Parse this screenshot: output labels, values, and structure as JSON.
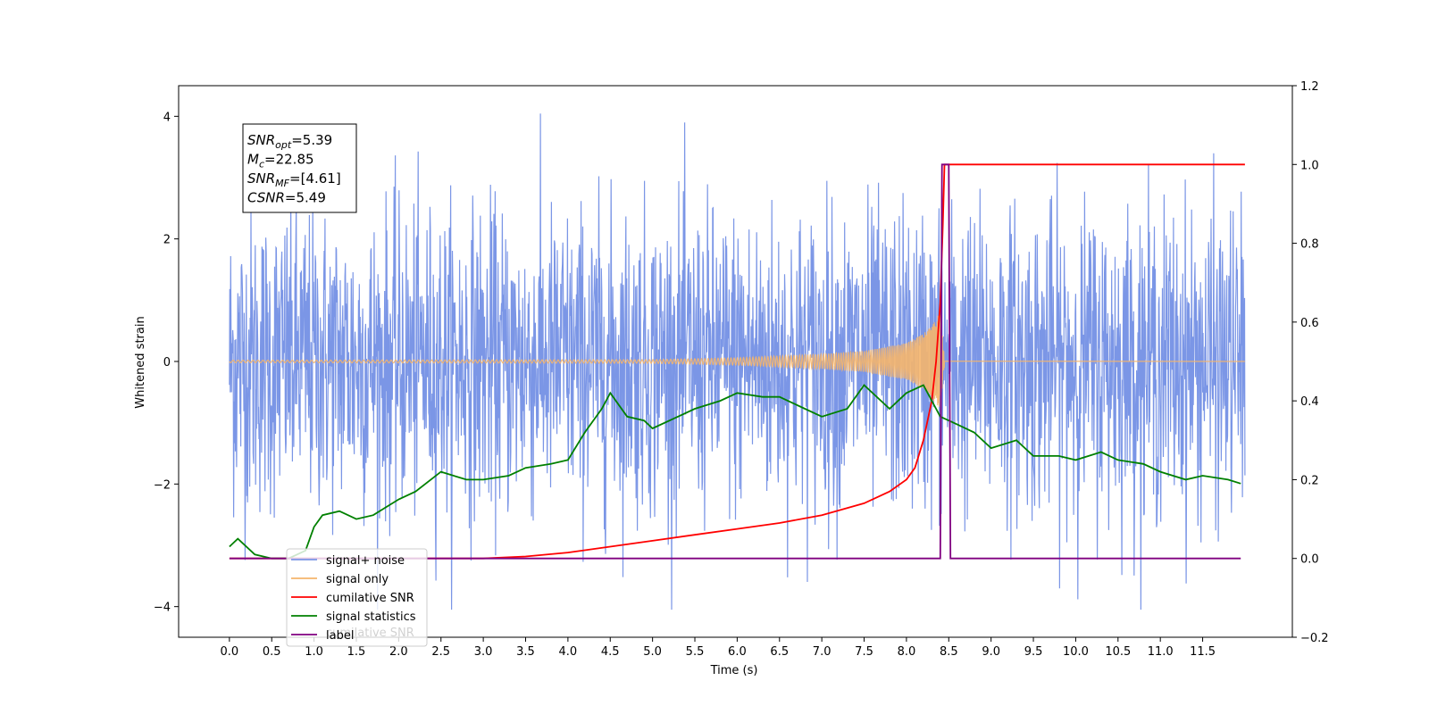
{
  "chart_data": {
    "type": "line",
    "title": "",
    "xlabel": "Time (s)",
    "ylabel": "Whitened strain",
    "y2label": "",
    "xlim": [
      -0.6,
      12.56
    ],
    "ylim": [
      -4.5,
      4.5
    ],
    "y2lim": [
      -0.2,
      1.2
    ],
    "grid": false,
    "legend_position": "lower-left",
    "x_ticks": [
      "0.0",
      "0.5",
      "1.0",
      "1.5",
      "2.0",
      "2.5",
      "3.0",
      "3.5",
      "4.0",
      "4.5",
      "5.0",
      "5.5",
      "6.0",
      "6.5",
      "7.0",
      "7.5",
      "8.0",
      "8.5",
      "9.0",
      "9.5",
      "10.0",
      "10.5",
      "11.0",
      "11.5"
    ],
    "y_ticks": [
      "4",
      "2",
      "0",
      "−2",
      "−4"
    ],
    "y_tick_values": [
      4,
      2,
      0,
      -2,
      -4
    ],
    "y2_ticks": [
      "1.2",
      "1.0",
      "0.8",
      "0.6",
      "0.4",
      "0.2",
      "0.0",
      "−0.2"
    ],
    "y2_tick_values": [
      1.2,
      1.0,
      0.8,
      0.6,
      0.4,
      0.2,
      0.0,
      -0.2
    ],
    "annotation": {
      "lines": [
        {
          "main": "SNR",
          "sub": "opt",
          "rest": "=5.39"
        },
        {
          "main": "M",
          "sub": "c",
          "rest": "=22.85"
        },
        {
          "main": "SNR",
          "sub": "MF",
          "rest": "=[4.61]"
        },
        {
          "main": "CSNR",
          "sub": "",
          "rest": "=5.49"
        }
      ]
    },
    "series": [
      {
        "name": "signal+ noise",
        "axis": "left",
        "color": "#7b96e6",
        "kind": "noise",
        "x_range": [
          0.0,
          12.0
        ],
        "description_values": {
          "typical_amplitude": 1.3,
          "max": 4.1,
          "min": -4.05
        }
      },
      {
        "name": "signal only",
        "axis": "left",
        "color": "#f5b56b",
        "kind": "chirp",
        "x_range": [
          0.0,
          8.45
        ],
        "envelope_x": [
          0.0,
          5.0,
          6.0,
          7.0,
          7.5,
          8.0,
          8.2,
          8.3,
          8.4,
          8.45
        ],
        "envelope_y": [
          0.02,
          0.03,
          0.06,
          0.12,
          0.17,
          0.3,
          0.45,
          0.6,
          0.8,
          0.05
        ]
      },
      {
        "name": "cumilative SNR",
        "axis": "right",
        "color": "#ff0000",
        "x": [
          0.0,
          2.0,
          3.0,
          3.5,
          4.0,
          4.5,
          5.0,
          5.5,
          6.0,
          6.5,
          7.0,
          7.5,
          7.8,
          8.0,
          8.1,
          8.2,
          8.3,
          8.35,
          8.4,
          8.43,
          8.45,
          12.0
        ],
        "values": [
          0.0,
          0.0,
          0.0,
          0.005,
          0.015,
          0.03,
          0.045,
          0.06,
          0.075,
          0.09,
          0.11,
          0.14,
          0.17,
          0.2,
          0.23,
          0.3,
          0.4,
          0.5,
          0.65,
          0.85,
          1.0,
          1.0
        ]
      },
      {
        "name": "signal statistics",
        "axis": "right",
        "color": "#008000",
        "x": [
          0.0,
          0.1,
          0.3,
          0.5,
          0.7,
          0.9,
          1.0,
          1.1,
          1.3,
          1.5,
          1.7,
          2.0,
          2.2,
          2.5,
          2.8,
          3.0,
          3.3,
          3.5,
          3.8,
          4.0,
          4.2,
          4.4,
          4.5,
          4.7,
          4.9,
          5.0,
          5.3,
          5.5,
          5.8,
          6.0,
          6.3,
          6.5,
          6.8,
          7.0,
          7.3,
          7.5,
          7.8,
          8.0,
          8.2,
          8.4,
          8.6,
          8.8,
          9.0,
          9.3,
          9.5,
          9.8,
          10.0,
          10.3,
          10.5,
          10.8,
          11.0,
          11.3,
          11.5,
          11.8,
          11.95
        ],
        "values": [
          0.03,
          0.05,
          0.01,
          0.0,
          0.0,
          0.02,
          0.08,
          0.11,
          0.12,
          0.1,
          0.11,
          0.15,
          0.17,
          0.22,
          0.2,
          0.2,
          0.21,
          0.23,
          0.24,
          0.25,
          0.32,
          0.38,
          0.42,
          0.36,
          0.35,
          0.33,
          0.36,
          0.38,
          0.4,
          0.42,
          0.41,
          0.41,
          0.38,
          0.36,
          0.38,
          0.44,
          0.38,
          0.42,
          0.44,
          0.36,
          0.34,
          0.32,
          0.28,
          0.3,
          0.26,
          0.26,
          0.25,
          0.27,
          0.25,
          0.24,
          0.22,
          0.2,
          0.21,
          0.2,
          0.19
        ]
      },
      {
        "name": "label",
        "axis": "right",
        "color": "#800080",
        "x": [
          0.0,
          8.4,
          8.42,
          8.5,
          8.52,
          11.95
        ],
        "values": [
          0.0,
          0.0,
          1.0,
          1.0,
          0.0,
          0.0
        ]
      }
    ],
    "legend_ghost_text": "cumilative SNR"
  }
}
